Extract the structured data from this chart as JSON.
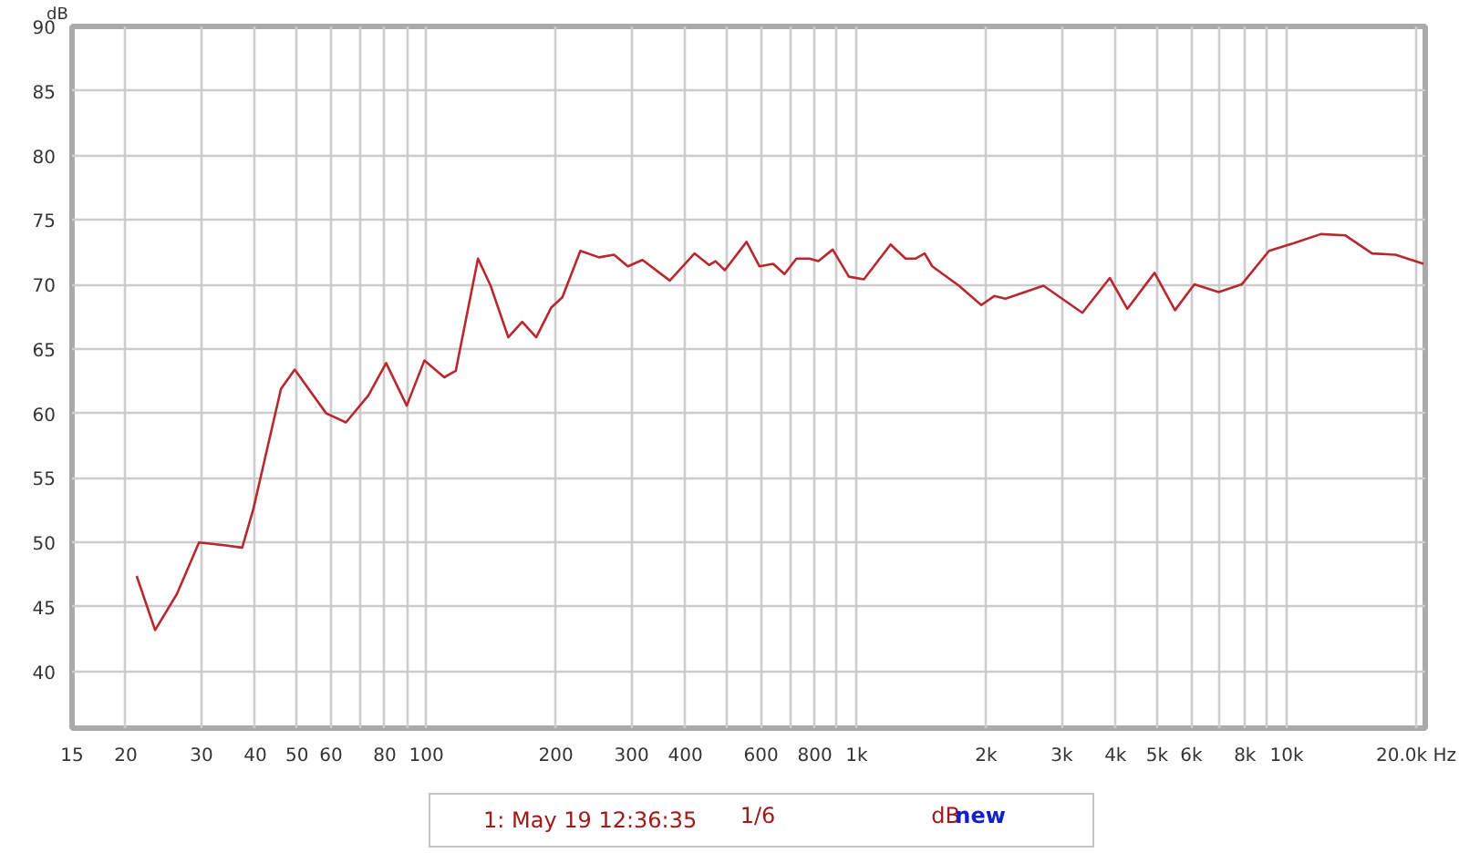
{
  "chart_data": {
    "type": "line",
    "ylabel": "dB",
    "log": "x",
    "grid": true,
    "legend": "bottom",
    "line_style": "solid",
    "marker": "none",
    "xlim": [
      15,
      21000
    ],
    "ylim": [
      35.6,
      90
    ],
    "xticks": [
      15,
      20,
      30,
      40,
      50,
      60,
      {
        "value": 70,
        "label": null
      },
      80,
      {
        "value": 90,
        "label": null
      },
      100,
      200,
      300,
      400,
      {
        "value": 500,
        "label": null
      },
      600,
      {
        "value": 700,
        "label": null
      },
      800,
      {
        "value": 900,
        "label": null
      },
      {
        "value": 1000,
        "label": "1k"
      },
      {
        "value": 2000,
        "label": "2k"
      },
      {
        "value": 3000,
        "label": "3k"
      },
      {
        "value": 4000,
        "label": "4k"
      },
      {
        "value": 5000,
        "label": "5k"
      },
      {
        "value": 6000,
        "label": "6k"
      },
      {
        "value": 7000,
        "label": null
      },
      {
        "value": 8000,
        "label": "8k"
      },
      {
        "value": 9000,
        "label": null
      },
      {
        "value": 10000,
        "label": "10k"
      },
      {
        "value": 20000,
        "label": "20.0k Hz"
      }
    ],
    "yticks": [
      40,
      45,
      50,
      55,
      60,
      65,
      70,
      75,
      80,
      85,
      90
    ],
    "annotations": [
      "1/6",
      "dB",
      "new"
    ],
    "series": [
      {
        "name": "1: May 19 12:36:35",
        "color": "#b8282e",
        "x": [
          21.2,
          23.4,
          26.3,
          29.6,
          33.5,
          37.3,
          39.6,
          45.9,
          49.4,
          58.5,
          65,
          73.3,
          80.6,
          90,
          98.9,
          110,
          117,
          131.8,
          141,
          155,
          167,
          180,
          195,
          207,
          228,
          252,
          273,
          294,
          318,
          368,
          420,
          454,
          470,
          494,
          555,
          595,
          640,
          680,
          725,
          777,
          815,
          880,
          960,
          1040,
          1200,
          1300,
          1370,
          1440,
          1500,
          1730,
          1950,
          2090,
          2220,
          2720,
          3350,
          3880,
          4260,
          4930,
          5500,
          6100,
          6950,
          7860,
          9100,
          10400,
          12000,
          13700,
          15800,
          17900,
          20800
        ],
        "values": [
          47.4,
          43.2,
          46,
          50,
          49.8,
          49.6,
          52.6,
          61.9,
          63.4,
          60,
          59.3,
          61.4,
          63.9,
          60.6,
          64.1,
          62.8,
          63.3,
          72,
          69.9,
          65.9,
          67.1,
          65.9,
          68.2,
          69,
          72.6,
          72.1,
          72.3,
          71.4,
          71.9,
          70.3,
          72.4,
          71.5,
          71.8,
          71.1,
          73.3,
          71.4,
          71.6,
          70.8,
          72,
          72,
          71.8,
          72.7,
          70.6,
          70.4,
          73.1,
          72,
          72,
          72.4,
          71.4,
          69.9,
          68.4,
          69.1,
          68.9,
          69.9,
          67.8,
          70.5,
          68.1,
          70.9,
          68,
          70,
          69.4,
          70,
          72.6,
          73.2,
          73.9,
          73.8,
          72.4,
          72.3,
          71.6
        ]
      }
    ]
  }
}
